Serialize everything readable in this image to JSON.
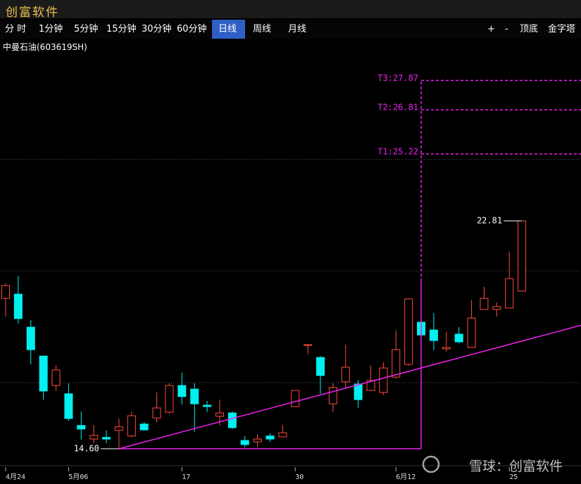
{
  "app_title": "创富软件",
  "toolbar": {
    "periods": [
      "分 时",
      "1分钟",
      "5分钟",
      "15分钟",
      "30分钟",
      "60分钟",
      "日线",
      "周线",
      "月线"
    ],
    "active": 6,
    "tools": [
      "+",
      "-",
      "顶底",
      "金字塔"
    ]
  },
  "stock_name": "中曼石油(603619SH)",
  "watermark": "雪球：创富软件",
  "chart_data": {
    "type": "candlestick",
    "categories": [
      "4月24",
      null,
      null,
      null,
      null,
      "5月06",
      null,
      null,
      null,
      null,
      null,
      null,
      null,
      null,
      "17",
      null,
      null,
      null,
      null,
      null,
      null,
      null,
      null,
      "30",
      null,
      null,
      null,
      null,
      null,
      null,
      null,
      "6月12",
      null,
      null,
      null,
      null,
      null,
      null,
      null,
      null,
      "25",
      null
    ],
    "open": [
      20.02,
      20.17,
      18.98,
      17.94,
      16.88,
      16.58,
      15.44,
      14.95,
      15.01,
      15.26,
      15.06,
      15.49,
      15.71,
      15.92,
      16.88,
      16.75,
      16.17,
      15.77,
      15.89,
      14.9,
      14.85,
      15.06,
      15.03,
      16.12,
      18.35,
      17.89,
      16.22,
      17.01,
      16.93,
      16.7,
      16.63,
      17.18,
      17.64,
      19.16,
      18.88,
      18.2,
      18.73,
      18.25,
      19.62,
      19.62,
      19.67,
      20.28
    ],
    "high": [
      20.56,
      20.83,
      19.24,
      17.94,
      17.59,
      16.96,
      15.94,
      15.46,
      15.26,
      15.69,
      15.94,
      15.56,
      16.63,
      16.96,
      17.34,
      16.96,
      16.32,
      16.37,
      15.94,
      15.06,
      15.11,
      15.16,
      15.46,
      16.7,
      18.35,
      17.94,
      16.96,
      18.35,
      17.08,
      17.59,
      17.72,
      18.86,
      20.0,
      19.24,
      19.49,
      18.81,
      18.98,
      19.95,
      20.43,
      19.87,
      21.7,
      22.81
    ],
    "low": [
      19.36,
      19.11,
      17.64,
      16.37,
      16.68,
      15.61,
      14.93,
      14.8,
      14.8,
      14.6,
      15.01,
      15.26,
      15.56,
      15.87,
      16.2,
      15.21,
      15.92,
      15.44,
      15.31,
      14.65,
      14.65,
      14.85,
      15.01,
      16.12,
      18.0,
      16.58,
      15.92,
      16.78,
      16.07,
      16.68,
      16.53,
      17.13,
      17.59,
      18.68,
      18.15,
      18.1,
      18.4,
      18.25,
      19.62,
      19.36,
      19.67,
      20.28
    ],
    "close": [
      20.48,
      19.29,
      18.17,
      16.68,
      17.44,
      15.69,
      15.31,
      15.08,
      14.95,
      15.39,
      15.79,
      15.28,
      16.07,
      16.88,
      16.48,
      16.22,
      16.12,
      15.89,
      15.36,
      14.75,
      14.95,
      14.95,
      15.18,
      16.7,
      18.35,
      17.24,
      16.8,
      17.54,
      16.37,
      17.06,
      17.51,
      18.17,
      20.0,
      18.7,
      18.5,
      18.25,
      18.45,
      19.31,
      20.02,
      19.72,
      20.73,
      22.81
    ],
    "up_color": "#ff4a3d",
    "down_color": "#00f0f0",
    "line_color": "#ee22ee",
    "ylim": [
      14.04,
      28.74
    ],
    "grid_lines": [
      16.98,
      21.01,
      25.02
    ],
    "low_label": {
      "index": 9,
      "value": 14.6,
      "label": "14.60"
    },
    "high_label": {
      "index": 41,
      "value": 22.81,
      "label": "22.81"
    },
    "trend_line": {
      "points": [
        [
          9,
          14.6
        ],
        [
          41,
          18.48
        ]
      ]
    },
    "projection": {
      "start_index": 9,
      "end_index": 33,
      "base": 14.6,
      "targets": [
        {
          "label": "T1:25.22",
          "value": 25.22
        },
        {
          "label": "T2:26.81",
          "value": 26.81
        },
        {
          "label": "T3:27.87",
          "value": 27.87
        }
      ]
    }
  }
}
